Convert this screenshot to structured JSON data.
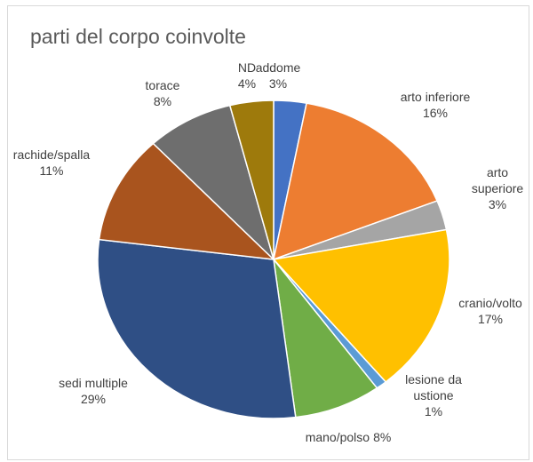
{
  "chart_data": {
    "type": "pie",
    "title": "parti del corpo coinvolte",
    "categories": [
      "addome",
      "arto inferiore",
      "arto superiore",
      "cranio/volto",
      "lesione da ustione",
      "mano/polso",
      "sedi multiple",
      "rachide/spalla",
      "torace",
      "ND"
    ],
    "values": [
      3,
      16,
      3,
      17,
      1,
      8,
      29,
      11,
      8,
      4
    ],
    "value_labels": [
      "3%",
      "16%",
      "3%",
      "17%",
      "1%",
      "8%",
      "29%",
      "11%",
      "8%",
      "4%"
    ],
    "colors": [
      "#4472c4",
      "#ed7d31",
      "#a5a5a5",
      "#ffc000",
      "#5b9bd5",
      "#70ad47",
      "#2f4f85",
      "#a9541e",
      "#6e6e6e",
      "#9e7a0c"
    ]
  }
}
